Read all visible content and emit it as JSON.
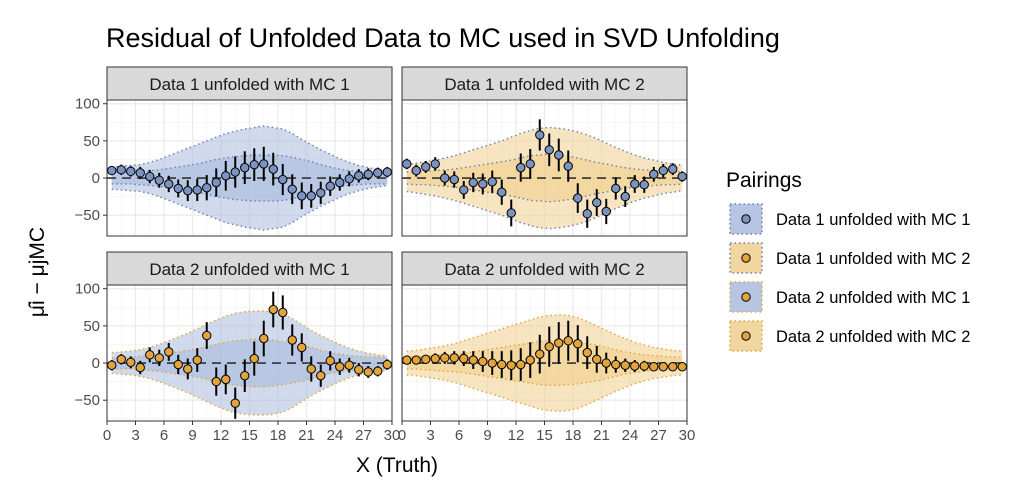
{
  "chart_data": {
    "type": "scatter",
    "title": "Residual of Unfolded Data to MC used in SVD Unfolding",
    "xlabel": "X (Truth)",
    "ylabel": "μ̂i − μjMC",
    "xlim": [
      0,
      30
    ],
    "ylim": [
      -78,
      105
    ],
    "x_ticks": [
      "0",
      "3",
      "6",
      "9",
      "12",
      "15",
      "18",
      "21",
      "24",
      "27",
      "30"
    ],
    "y_ticks": [
      "−50",
      "0",
      "50",
      "100"
    ],
    "grid": true,
    "legend": {
      "title": "Pairings",
      "placement": "right",
      "entries": [
        {
          "label": "Data 1 unfolded with MC 1",
          "fill": "#7a93c2",
          "band": "#a9bbdd",
          "border": "#6b7fb0"
        },
        {
          "label": "Data 1 unfolded with MC 2",
          "fill": "#e2a43c",
          "band": "#f0cf8e",
          "border": "#6b7fb0"
        },
        {
          "label": "Data 2 unfolded with MC 1",
          "fill": "#e2a43c",
          "band": "#a9bbdd",
          "border": "#e2a43c"
        },
        {
          "label": "Data 2 unfolded with MC 2",
          "fill": "#e2a43c",
          "band": "#f0cf8e",
          "border": "#e2a43c"
        }
      ]
    },
    "x": [
      0.5,
      1.5,
      2.5,
      3.5,
      4.5,
      5.5,
      6.5,
      7.5,
      8.5,
      9.5,
      10.5,
      11.5,
      12.5,
      13.5,
      14.5,
      15.5,
      16.5,
      17.5,
      18.5,
      19.5,
      20.5,
      21.5,
      22.5,
      23.5,
      24.5,
      25.5,
      26.5,
      27.5,
      28.5,
      29.5
    ],
    "panels": [
      {
        "strip": "Data 1 unfolded with MC 1",
        "point_fill": "#7a93c2",
        "band_color": "#a9bbdd",
        "band_border": "#6b7fb0",
        "outer": [
          15,
          16,
          17,
          18,
          21,
          25,
          30,
          35,
          40,
          45,
          50,
          55,
          60,
          63,
          66,
          68,
          70,
          68,
          66,
          60,
          52,
          45,
          38,
          32,
          26,
          21,
          17,
          14,
          12,
          10
        ],
        "inner": [
          8,
          8,
          8,
          9,
          10,
          11,
          13,
          15,
          17,
          19,
          22,
          25,
          27,
          29,
          30,
          31,
          31,
          31,
          30,
          28,
          25,
          22,
          18,
          15,
          12,
          10,
          9,
          8,
          8,
          8
        ],
        "y": [
          10,
          11,
          9,
          7,
          2,
          -3,
          -8,
          -14,
          -17,
          -16,
          -13,
          -6,
          3,
          8,
          14,
          18,
          19,
          12,
          -2,
          -15,
          -24,
          -24,
          -20,
          -11,
          -6,
          -1,
          3,
          5,
          7,
          8
        ],
        "err": [
          6,
          7,
          7,
          8,
          9,
          10,
          11,
          12,
          14,
          15,
          17,
          19,
          20,
          21,
          22,
          22,
          23,
          22,
          21,
          20,
          18,
          16,
          15,
          13,
          11,
          10,
          9,
          8,
          7,
          7
        ]
      },
      {
        "strip": "Data 1 unfolded with MC 2",
        "point_fill": "#7a93c2",
        "band_color": "#f0cf8e",
        "band_border": "#6b7fb0",
        "outer": [
          18,
          20,
          22,
          24,
          27,
          30,
          34,
          38,
          42,
          46,
          50,
          55,
          60,
          64,
          67,
          68,
          67,
          65,
          62,
          58,
          53,
          47,
          41,
          36,
          31,
          27,
          24,
          21,
          19,
          17
        ],
        "inner": [
          8,
          9,
          9,
          10,
          11,
          12,
          14,
          16,
          18,
          20,
          22,
          24,
          27,
          30,
          31,
          32,
          31,
          29,
          27,
          24,
          21,
          19,
          16,
          14,
          12,
          11,
          10,
          9,
          9,
          8
        ],
        "y": [
          19,
          10,
          15,
          19,
          0,
          -2,
          -16,
          -6,
          -8,
          -5,
          -19,
          -47,
          14,
          19,
          58,
          38,
          31,
          16,
          -27,
          -48,
          -33,
          -45,
          -14,
          -25,
          -8,
          -9,
          5,
          10,
          12,
          2
        ],
        "err": [
          7,
          8,
          8,
          9,
          10,
          11,
          12,
          13,
          14,
          15,
          17,
          18,
          19,
          20,
          21,
          22,
          22,
          21,
          20,
          19,
          18,
          17,
          15,
          14,
          12,
          11,
          10,
          9,
          8,
          7
        ]
      },
      {
        "strip": "Data 2 unfolded with MC 1",
        "point_fill": "#e2a43c",
        "band_color": "#a9bbdd",
        "band_border": "#e2a43c",
        "outer": [
          14,
          15,
          16,
          18,
          21,
          25,
          30,
          35,
          40,
          46,
          52,
          58,
          63,
          67,
          69,
          70,
          70,
          69,
          66,
          60,
          52,
          44,
          37,
          31,
          25,
          20,
          16,
          13,
          11,
          10
        ],
        "inner": [
          7,
          8,
          8,
          9,
          10,
          11,
          13,
          15,
          17,
          19,
          22,
          25,
          28,
          30,
          31,
          32,
          32,
          31,
          29,
          27,
          24,
          21,
          17,
          14,
          12,
          10,
          9,
          8,
          8,
          7
        ],
        "y": [
          -3,
          5,
          1,
          -6,
          11,
          7,
          15,
          -2,
          -8,
          4,
          37,
          -25,
          -22,
          -54,
          -17,
          6,
          33,
          72,
          68,
          31,
          21,
          -8,
          -17,
          3,
          -5,
          -3,
          -9,
          -12,
          -11,
          -2
        ],
        "err": [
          7,
          7,
          8,
          9,
          10,
          11,
          12,
          13,
          14,
          16,
          18,
          19,
          20,
          21,
          22,
          23,
          24,
          24,
          23,
          21,
          19,
          17,
          15,
          13,
          11,
          10,
          9,
          8,
          7,
          7
        ]
      },
      {
        "strip": "Data 2 unfolded with MC 2",
        "point_fill": "#e2a43c",
        "band_color": "#f0cf8e",
        "band_border": "#e2a43c",
        "outer": [
          16,
          17,
          19,
          21,
          23,
          26,
          30,
          34,
          38,
          42,
          46,
          50,
          54,
          58,
          62,
          64,
          65,
          64,
          61,
          56,
          50,
          44,
          38,
          33,
          28,
          24,
          21,
          19,
          17,
          16
        ],
        "inner": [
          8,
          8,
          9,
          10,
          11,
          12,
          13,
          15,
          17,
          19,
          21,
          23,
          25,
          27,
          29,
          30,
          30,
          29,
          28,
          26,
          24,
          21,
          18,
          15,
          13,
          11,
          10,
          9,
          8,
          8
        ],
        "y": [
          4,
          4,
          5,
          6,
          7,
          7,
          6,
          4,
          2,
          0,
          -2,
          -3,
          -2,
          4,
          12,
          22,
          27,
          30,
          26,
          14,
          5,
          0,
          -2,
          -3,
          -4,
          -4,
          -5,
          -5,
          -5,
          -5
        ],
        "err": [
          5,
          6,
          6,
          7,
          8,
          9,
          10,
          12,
          14,
          16,
          18,
          20,
          22,
          24,
          26,
          27,
          28,
          27,
          25,
          22,
          18,
          14,
          11,
          9,
          8,
          7,
          6,
          6,
          5,
          5
        ]
      }
    ]
  }
}
